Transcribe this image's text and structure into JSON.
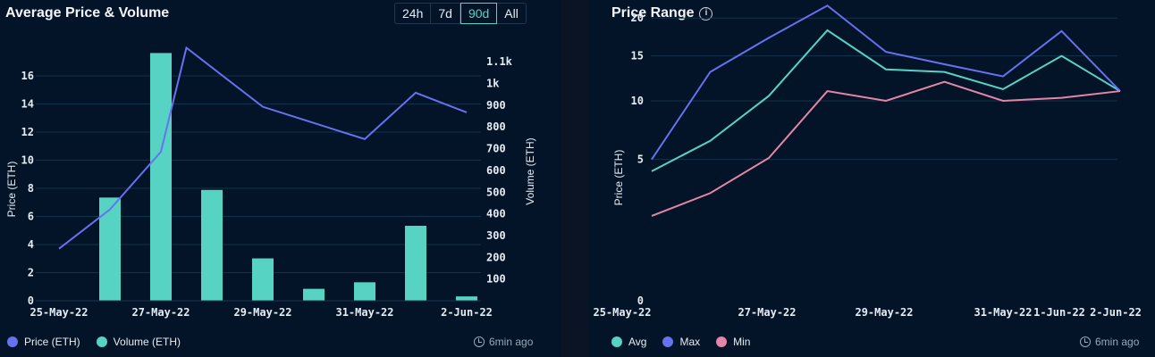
{
  "colors": {
    "price": "#6672ef",
    "volume": "#57d3c4",
    "avg": "#57d3c4",
    "max": "#6672ef",
    "min": "#e486a8",
    "grid": "#14314a"
  },
  "left": {
    "title": "Average Price & Volume",
    "tabs": [
      "24h",
      "7d",
      "90d",
      "All"
    ],
    "active_tab": "90d",
    "legend": [
      {
        "label": "Price (ETH)",
        "color": "#6672ef"
      },
      {
        "label": "Volume (ETH)",
        "color": "#57d3c4"
      }
    ],
    "updated": "6min ago"
  },
  "right": {
    "title": "Price Range",
    "legend": [
      {
        "label": "Avg",
        "color": "#57d3c4"
      },
      {
        "label": "Max",
        "color": "#6672ef"
      },
      {
        "label": "Min",
        "color": "#e486a8"
      }
    ],
    "updated": "6min ago"
  },
  "chart_data": [
    {
      "type": "bar",
      "title": "Average Price & Volume",
      "x_tick_labels": [
        "25-May-22",
        "27-May-22",
        "29-May-22",
        "31-May-22",
        "2-Jun-22"
      ],
      "x_dates": [
        "25-May-22",
        "26-May-22",
        "27-May-22",
        "28-May-22",
        "29-May-22",
        "30-May-22",
        "31-May-22",
        "1-Jun-22",
        "2-Jun-22"
      ],
      "series": [
        {
          "name": "Volume (ETH)",
          "type": "bar",
          "axis": "right",
          "x": [
            "26-May-22",
            "27-May-22",
            "28-May-22",
            "29-May-22",
            "30-May-22",
            "31-May-22",
            "1-Jun-22",
            "2-Jun-22"
          ],
          "values": [
            475,
            1140,
            510,
            195,
            55,
            85,
            345,
            20
          ]
        },
        {
          "name": "Price (ETH)",
          "type": "line",
          "axis": "left",
          "x": [
            "25-May-22",
            "26-May-22",
            "27-May-22",
            "27.5-May-22",
            "29-May-22",
            "31-May-22",
            "1-Jun-22",
            "2-Jun-22"
          ],
          "x_days": [
            0,
            1,
            2,
            2.5,
            4,
            6,
            7,
            8
          ],
          "values": [
            3.7,
            6.5,
            10.6,
            18.0,
            13.8,
            11.5,
            14.8,
            13.4
          ]
        }
      ],
      "ylabel": "Price (ETH)",
      "ylabel_right": "Volume (ETH)",
      "ylim": [
        0,
        18
      ],
      "y_ticks": [
        0,
        2,
        4,
        6,
        8,
        10,
        12,
        14,
        16
      ],
      "ylim_right": [
        0,
        1150
      ],
      "y_ticks_right": [
        "100",
        "200",
        "300",
        "400",
        "500",
        "600",
        "700",
        "800",
        "900",
        "1k",
        "1.1k"
      ],
      "y_ticks_right_values": [
        100,
        200,
        300,
        400,
        500,
        600,
        700,
        800,
        900,
        1000,
        1100
      ],
      "grid": true,
      "legend": "bottom-left"
    },
    {
      "type": "line",
      "title": "Price Range",
      "x_tick_labels": [
        "25-May-22",
        "27-May-22",
        "29-May-22",
        "31-May-22",
        "1-Jun-22",
        "2-Jun-22"
      ],
      "x_days": [
        0,
        1,
        2,
        3,
        4,
        5,
        6,
        7,
        8
      ],
      "series": [
        {
          "name": "Avg",
          "values": [
            4.2,
            6.4,
            10.5,
            18.3,
            13.4,
            13.1,
            11.2,
            15.0,
            11.0
          ]
        },
        {
          "name": "Max",
          "values": [
            5.0,
            13.1,
            17.3,
            21.8,
            15.5,
            14.0,
            12.6,
            18.2,
            11.0
          ]
        },
        {
          "name": "Min",
          "values": [
            1.8,
            2.9,
            5.1,
            11.0,
            10.0,
            12.0,
            10.0,
            10.3,
            11.0
          ]
        }
      ],
      "ylabel": "Price (ETH)",
      "y_scale": "sqrt",
      "ylim": [
        0,
        24
      ],
      "y_ticks": [
        0,
        5,
        10,
        15,
        20
      ],
      "grid": true,
      "legend": "bottom-left"
    }
  ]
}
